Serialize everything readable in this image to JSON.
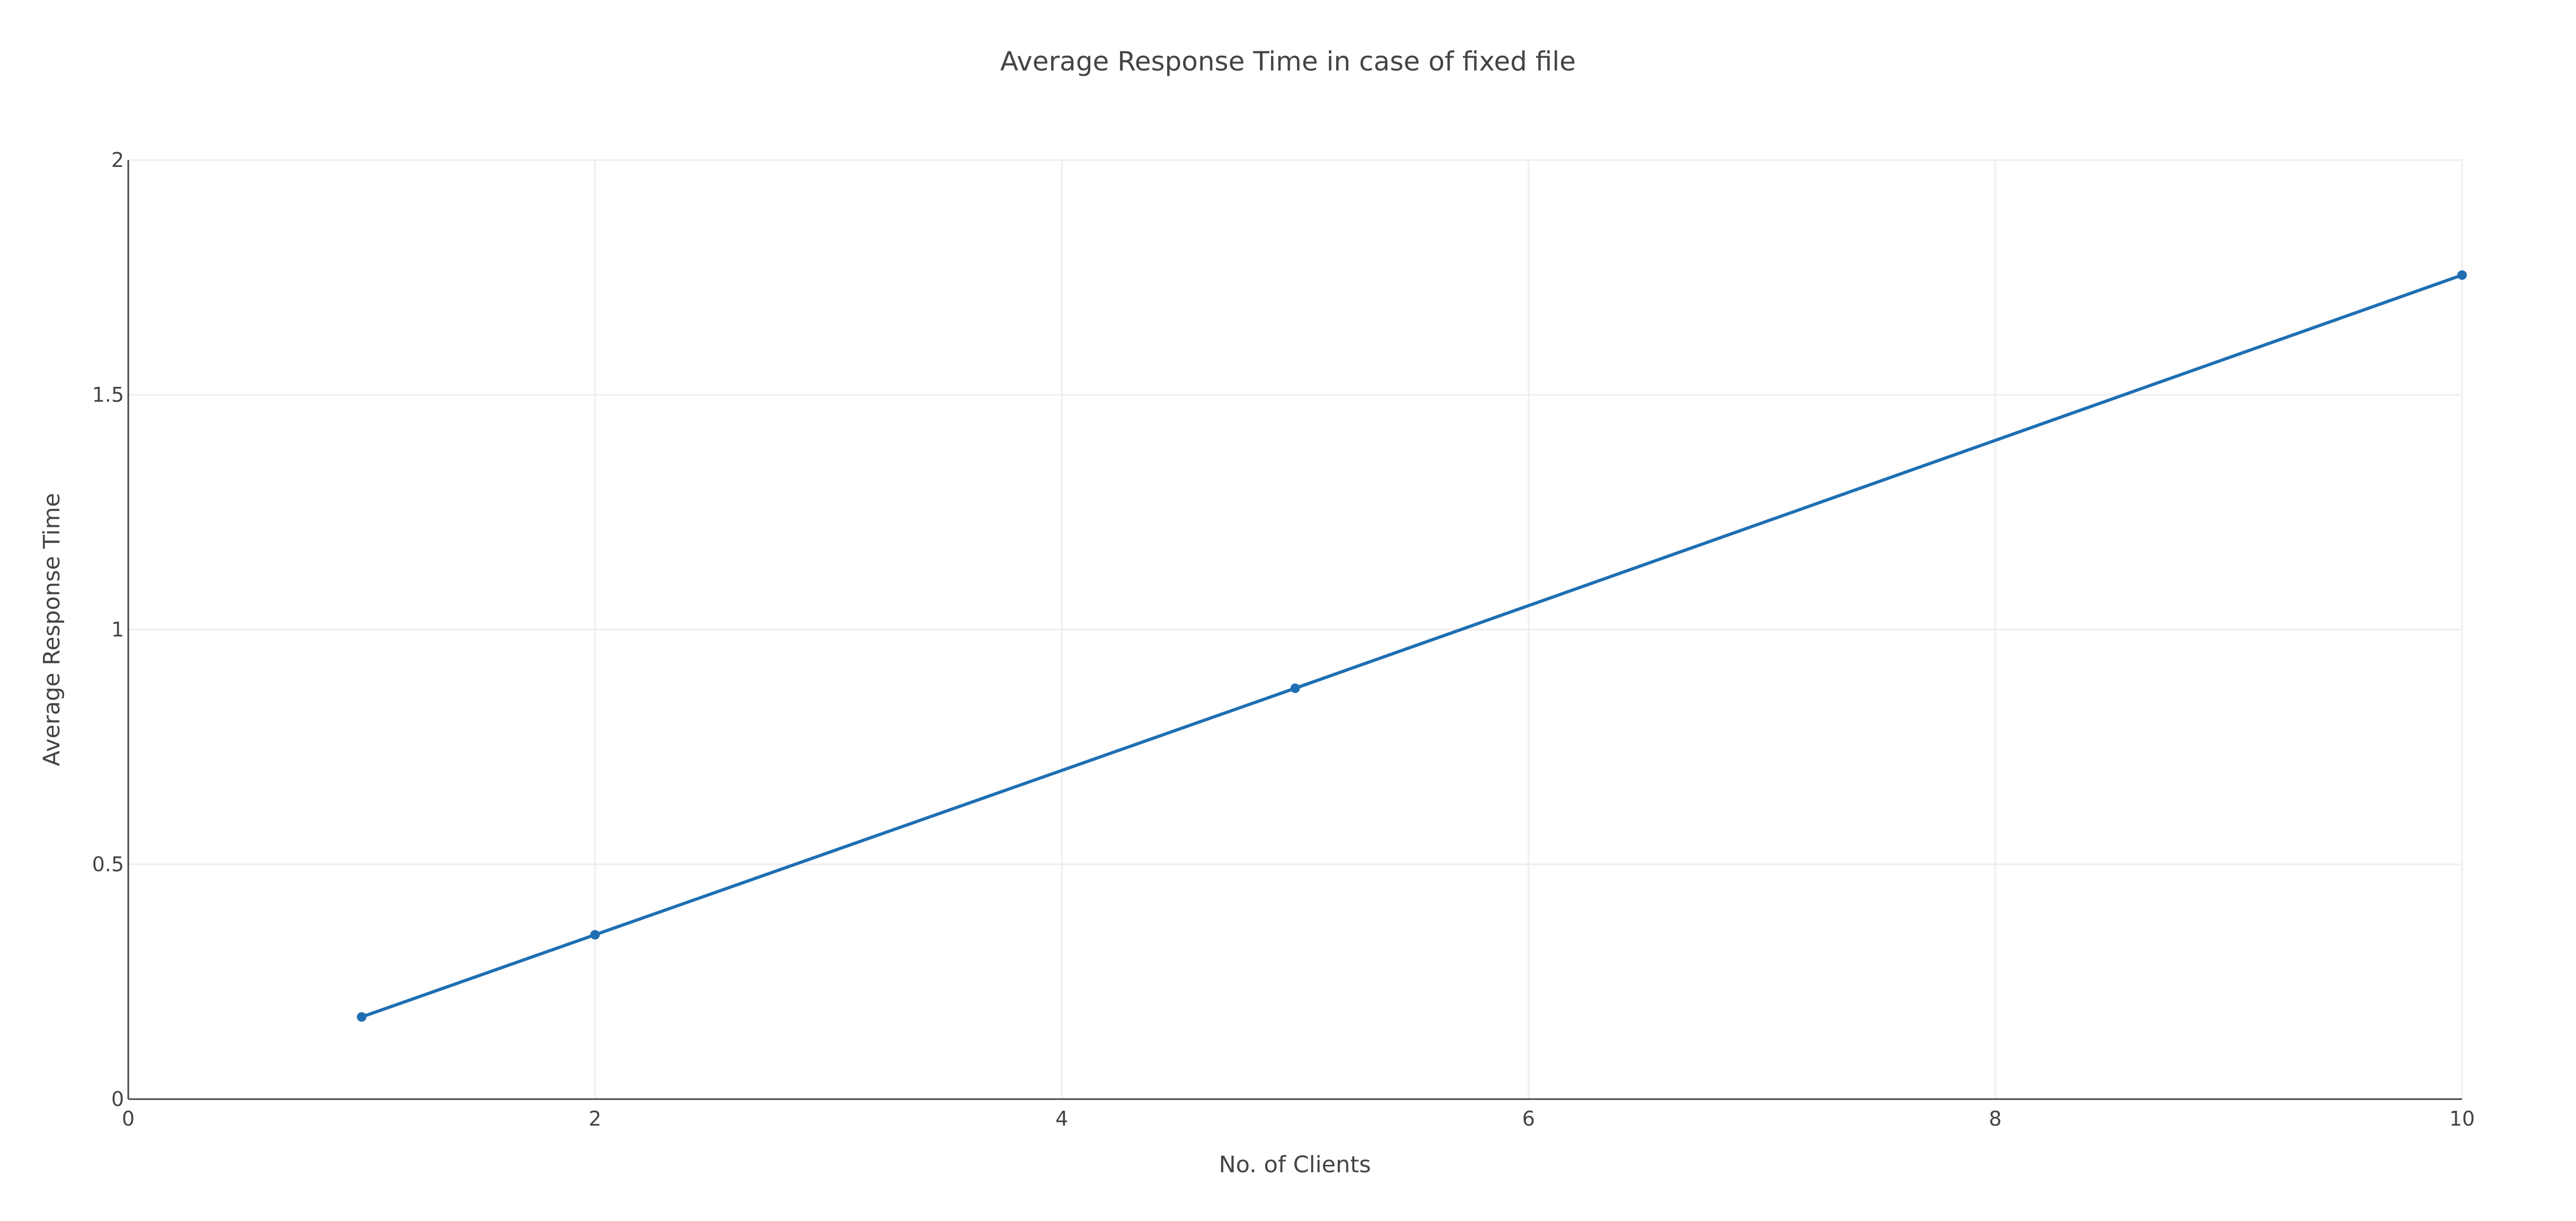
{
  "colors": {
    "background": "#ffffff",
    "text": "#444444",
    "grid": "#eeeeee",
    "axis": "#444444",
    "series": "#1f6fb2"
  },
  "chart_data": {
    "type": "line",
    "title": "Average Response Time in case of fixed file",
    "xlabel": "No. of Clients",
    "ylabel": "Average Response Time",
    "xlim": [
      0,
      10
    ],
    "ylim": [
      0,
      2
    ],
    "x_ticks": [
      0,
      2,
      4,
      6,
      8,
      10
    ],
    "x_tick_labels": [
      "0",
      "2",
      "4",
      "6",
      "8",
      "10"
    ],
    "y_ticks": [
      0,
      0.5,
      1,
      1.5,
      2
    ],
    "y_tick_labels": [
      "0",
      "0.5",
      "1",
      "1.5",
      "2"
    ],
    "grid": true,
    "legend": "none",
    "series": [
      {
        "x": [
          1,
          2,
          5,
          10
        ],
        "y": [
          0.175,
          0.35,
          0.875,
          1.755
        ],
        "mode": "lines+markers",
        "color": "#1f6fb2"
      }
    ]
  }
}
